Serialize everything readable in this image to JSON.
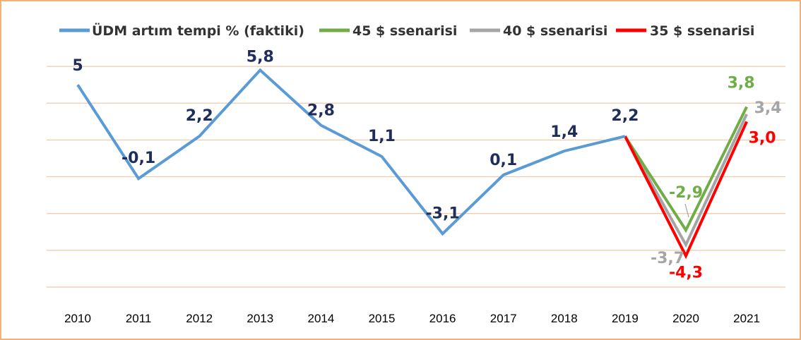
{
  "chart_data": {
    "type": "line",
    "categories": [
      "2010",
      "2011",
      "2012",
      "2013",
      "2014",
      "2015",
      "2016",
      "2017",
      "2018",
      "2019",
      "2020",
      "2021"
    ],
    "ylim": [
      -6,
      8
    ],
    "grid": "horizontal",
    "legend_position": "top",
    "series": [
      {
        "name": "ÜDM artım tempi % (faktiki)",
        "color": "#5b9bd5",
        "label_color": "#1f2d5c",
        "values": [
          5,
          -0.1,
          2.2,
          5.8,
          2.8,
          1.1,
          -3.1,
          0.1,
          1.4,
          2.2,
          null,
          null
        ],
        "labels": [
          "5",
          "-0,1",
          "2,2",
          "5,8",
          "2,8",
          "1,1",
          "-3,1",
          "0,1",
          "1,4",
          "2,2",
          "",
          ""
        ]
      },
      {
        "name": "45 $ ssenarisi",
        "color": "#70ad47",
        "label_color": "#70ad47",
        "values": [
          null,
          null,
          null,
          null,
          null,
          null,
          null,
          null,
          null,
          2.2,
          -2.9,
          3.8
        ],
        "labels": [
          "",
          "",
          "",
          "",
          "",
          "",
          "",
          "",
          "",
          "",
          "-2,9",
          "3,8"
        ]
      },
      {
        "name": "40 $ ssenarisi",
        "color": "#a5a5a5",
        "label_color": "#a5a5a5",
        "values": [
          null,
          null,
          null,
          null,
          null,
          null,
          null,
          null,
          null,
          2.2,
          -3.7,
          3.4
        ],
        "labels": [
          "",
          "",
          "",
          "",
          "",
          "",
          "",
          "",
          "",
          "",
          "-3,7",
          "3,4"
        ]
      },
      {
        "name": "35 $ ssenarisi",
        "color": "#ff0000",
        "label_color": "#ff0000",
        "values": [
          null,
          null,
          null,
          null,
          null,
          null,
          null,
          null,
          null,
          2.2,
          -4.3,
          3.0
        ],
        "labels": [
          "",
          "",
          "",
          "",
          "",
          "",
          "",
          "",
          "",
          "",
          "-4,3",
          "3,0"
        ]
      }
    ]
  }
}
